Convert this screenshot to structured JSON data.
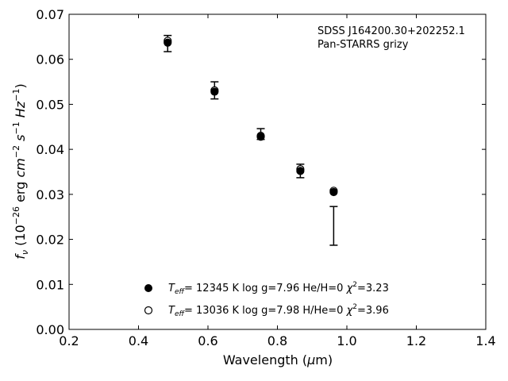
{
  "chart_data": {
    "type": "scatter",
    "annotation": [
      "SDSS J164200.30+202252.1",
      "Pan-STARRS grizy"
    ],
    "xlabel": {
      "main": "Wavelength (",
      "mu": "μ",
      "unit": "m)"
    },
    "ylabel": {
      "f": "f",
      "nu": "ν",
      "text": " (10",
      "exp1": "−26",
      "erg": " erg ",
      "cm": "cm",
      "exp2": "−2",
      "s": " s",
      "exp3": "−1",
      "hz": " Hz",
      "exp4": "−1",
      "close": ")"
    },
    "xlim": [
      0.2,
      1.4
    ],
    "ylim": [
      0.0,
      0.07
    ],
    "xticks": [
      0.2,
      0.4,
      0.6,
      0.8,
      1.0,
      1.2,
      1.4
    ],
    "xtick_labels": [
      "0.2",
      "0.4",
      "0.6",
      "0.8",
      "1.0",
      "1.2",
      "1.4"
    ],
    "yticks": [
      0.0,
      0.01,
      0.02,
      0.03,
      0.04,
      0.05,
      0.06,
      0.07
    ],
    "ytick_labels": [
      "0.00",
      "0.01",
      "0.02",
      "0.03",
      "0.04",
      "0.05",
      "0.06",
      "0.07"
    ],
    "observed": {
      "x": [
        0.484,
        0.619,
        0.752,
        0.866,
        0.962
      ],
      "y": [
        0.0635,
        0.0531,
        0.0434,
        0.0352,
        0.023
      ],
      "err": [
        0.0018,
        0.0019,
        0.0012,
        0.0015,
        0.0043
      ]
    },
    "series": [
      {
        "marker": "filled",
        "x": [
          0.484,
          0.619,
          0.752,
          0.866,
          0.962
        ],
        "y": [
          0.0637,
          0.0528,
          0.0428,
          0.0352,
          0.0305
        ],
        "legend": {
          "t": "T",
          "sub": "eff",
          "rest": "= 12345 K  log g=7.96  He/H=0  ",
          "chi": "χ",
          "sup": "2",
          "val": "=3.23"
        }
      },
      {
        "marker": "open",
        "x": [
          0.484,
          0.619,
          0.752,
          0.866,
          0.962
        ],
        "y": [
          0.0641,
          0.0531,
          0.043,
          0.0356,
          0.0308
        ],
        "legend": {
          "t": "T",
          "sub": "eff",
          "rest": "= 13036 K  log g=7.98  H/He=0  ",
          "chi": "χ",
          "sup": "2",
          "val": "=3.96"
        }
      }
    ]
  }
}
